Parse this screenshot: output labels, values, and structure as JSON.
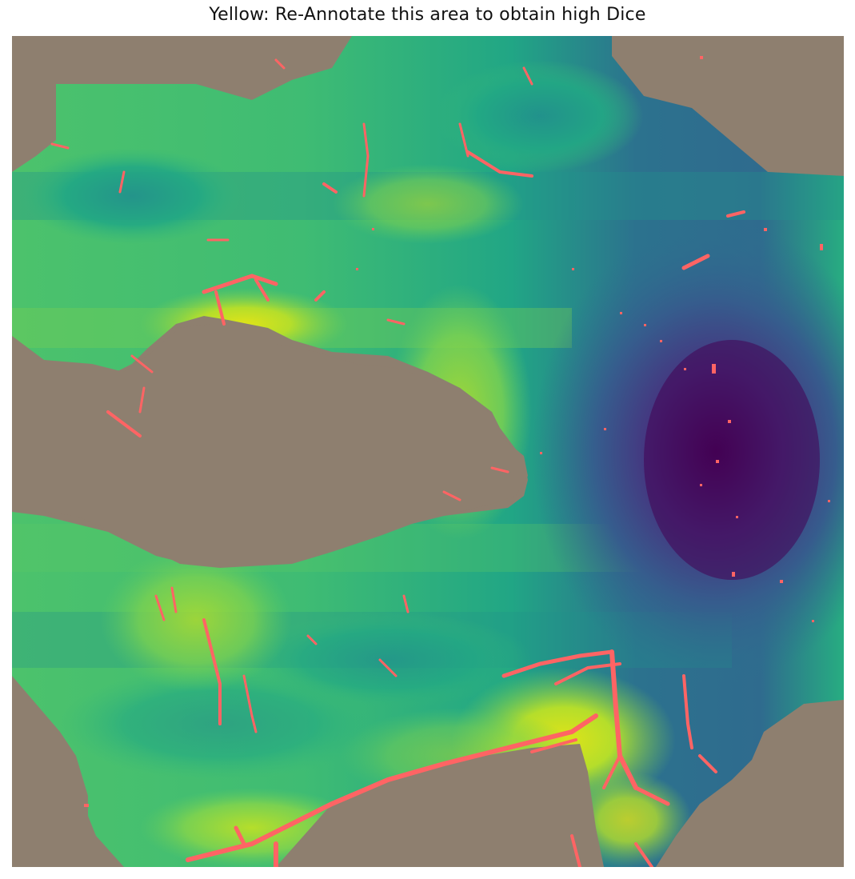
{
  "figure": {
    "title": "Yellow: Re-Annotate this area to obtain high Dice"
  },
  "image": {
    "description_name": "uncertainty-heatmap-with-annotation-overlay",
    "colormap": "viridis",
    "colors": {
      "background": "#8e7f6f",
      "annotation": "#ff6464",
      "high": "#dfe318",
      "mid": "#21918c",
      "low": "#440154"
    }
  }
}
